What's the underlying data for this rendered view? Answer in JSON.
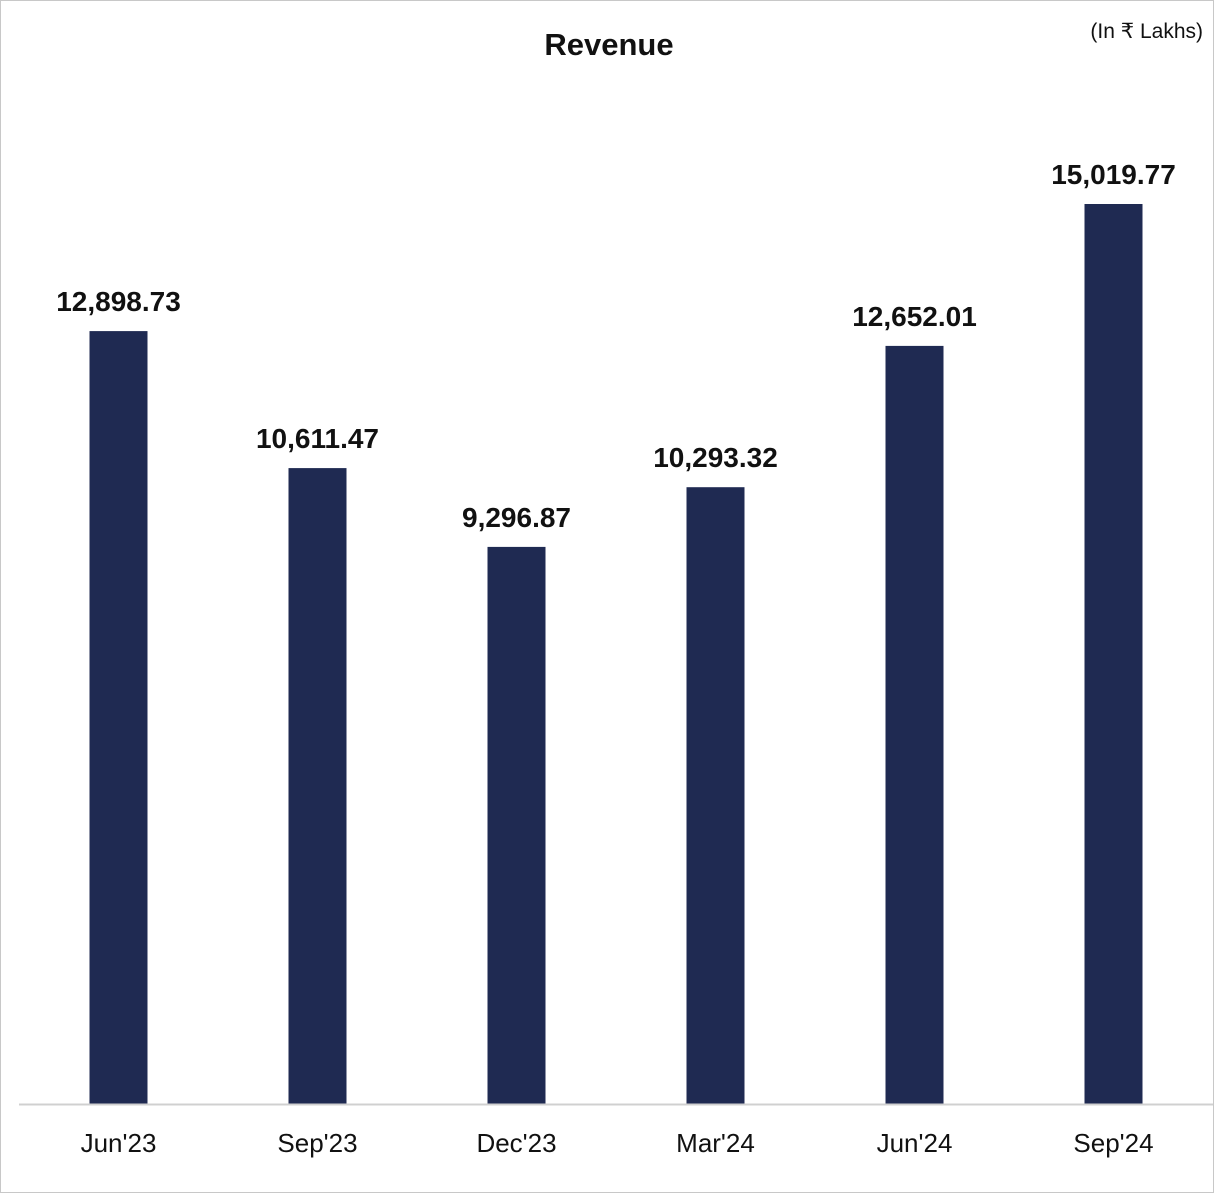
{
  "chart_data": {
    "type": "bar",
    "title": "Revenue",
    "unit_note": "(In ₹ Lakhs)",
    "categories": [
      "Jun'23",
      "Sep'23",
      "Dec'23",
      "Mar'24",
      "Jun'24",
      "Sep'24"
    ],
    "values": [
      12898.73,
      10611.47,
      9296.87,
      10293.32,
      12652.01,
      15019.77
    ],
    "data_labels": [
      "12,898.73",
      "10,611.47",
      "9,296.87",
      "10,293.32",
      "12,652.01",
      "15,019.77"
    ],
    "ylim": [
      0,
      16000
    ],
    "grid": false,
    "legend": "none",
    "bar_color": "#1f2a52",
    "axis_color": "#d0d0d0"
  }
}
